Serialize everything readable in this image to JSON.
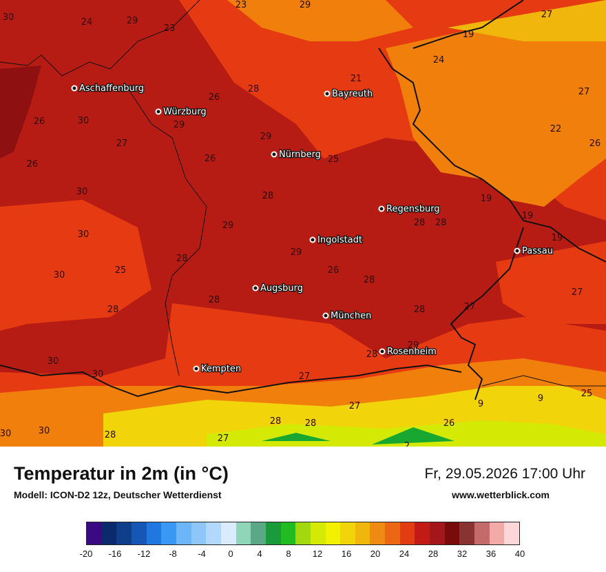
{
  "map": {
    "cities": [
      {
        "name": "Aschaffenburg"
      },
      {
        "name": "Würzburg"
      },
      {
        "name": "Bayreuth"
      },
      {
        "name": "Nürnberg"
      },
      {
        "name": "Regensburg"
      },
      {
        "name": "Ingolstadt"
      },
      {
        "name": "Passau"
      },
      {
        "name": "Augsburg"
      },
      {
        "name": "München"
      },
      {
        "name": "Rosenheim"
      },
      {
        "name": "Kempten"
      }
    ],
    "values": [
      "30",
      "24",
      "29",
      "23",
      "23",
      "29",
      "28",
      "19",
      "26",
      "24",
      "27",
      "27",
      "22",
      "26",
      "26",
      "30",
      "29",
      "27",
      "26",
      "28",
      "29",
      "26",
      "25",
      "30",
      "28",
      "29",
      "19",
      "28",
      "30",
      "29",
      "25",
      "28",
      "29",
      "30",
      "28",
      "26",
      "28",
      "28",
      "27",
      "28",
      "27",
      "28",
      "30",
      "30",
      "27",
      "9",
      "25",
      "27",
      "28",
      "28",
      "26",
      "30",
      "30",
      "28",
      "27",
      "2",
      "9",
      "19",
      "19",
      "21"
    ],
    "colors": {
      "hot": "#b71c14",
      "very_hot": "#8e1010",
      "warm": "#e63b12",
      "orange": "#f07f0c",
      "yellow": "#f5d60a",
      "green": "#18a832"
    }
  },
  "footer": {
    "title": "Temperatur in 2m (in °C)",
    "subtitle": "Modell: ICON-D2 12z, Deutscher Wetterdienst",
    "datetime": "Fr, 29.05.2026 17:00 Uhr",
    "website": "www.wetterblick.com"
  },
  "legend": {
    "colors": [
      "#3b0a82",
      "#0b2a6e",
      "#0f3f8a",
      "#1656b4",
      "#1f78e0",
      "#3a98f5",
      "#6cb5f7",
      "#8fc6f9",
      "#b2d8fb",
      "#d9ebfd",
      "#8fd6b8",
      "#5aa886",
      "#1a9a3a",
      "#22bb22",
      "#a3d80e",
      "#d4ea04",
      "#f2f200",
      "#f1d40a",
      "#f1b60c",
      "#ef8a12",
      "#ec6614",
      "#e23c12",
      "#c21b15",
      "#a3161a",
      "#7a0b0b",
      "#8a3333",
      "#c46a6a",
      "#f2aaa6",
      "#fcd6d8"
    ],
    "ticks": [
      "-20",
      "-16",
      "-12",
      "-8",
      "-4",
      "0",
      "4",
      "8",
      "12",
      "16",
      "20",
      "24",
      "28",
      "32",
      "36",
      "40"
    ]
  }
}
